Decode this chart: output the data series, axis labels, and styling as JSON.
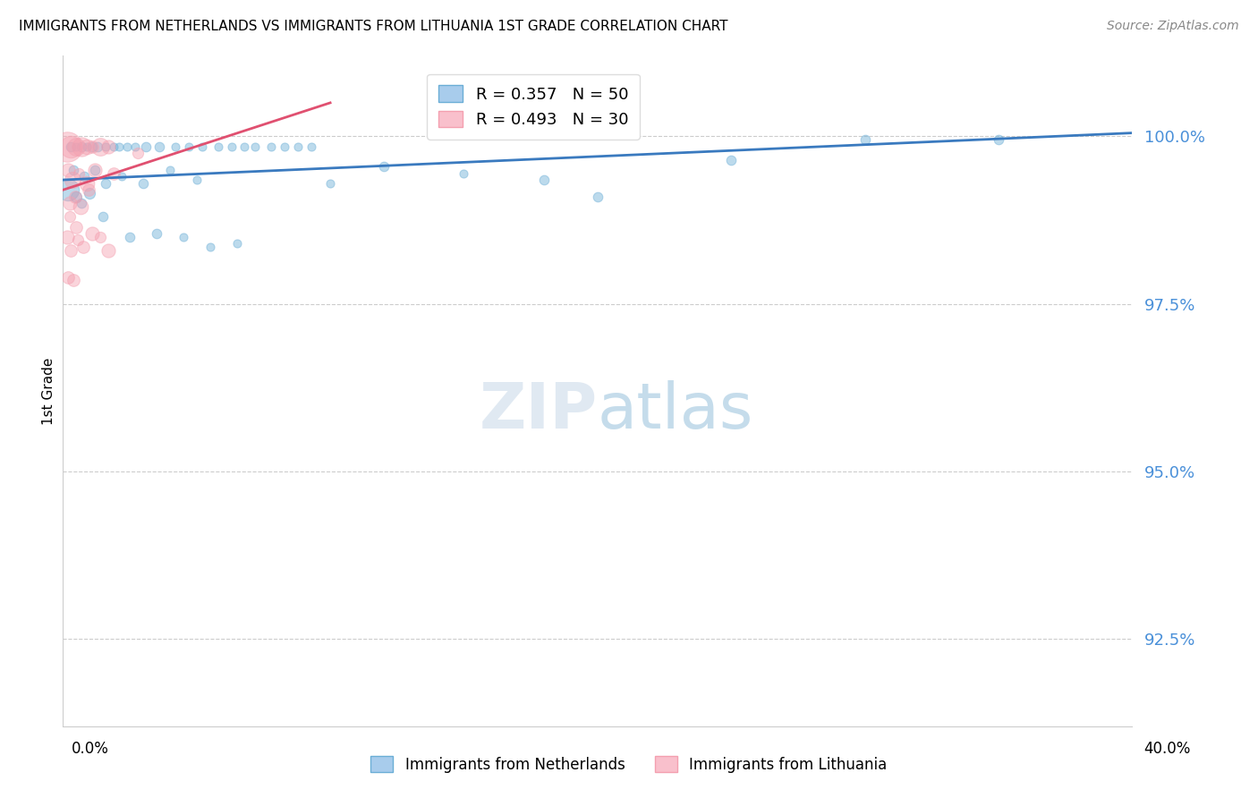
{
  "title": "IMMIGRANTS FROM NETHERLANDS VS IMMIGRANTS FROM LITHUANIA 1ST GRADE CORRELATION CHART",
  "source": "Source: ZipAtlas.com",
  "ylabel": "1st Grade",
  "yticks": [
    92.5,
    95.0,
    97.5,
    100.0
  ],
  "ytick_labels": [
    "92.5%",
    "95.0%",
    "97.5%",
    "100.0%"
  ],
  "xmin": 0.0,
  "xmax": 40.0,
  "ymin": 91.2,
  "ymax": 101.2,
  "netherlands_color": "#6baed6",
  "lithuania_color": "#f4a0b0",
  "netherlands_label": "Immigrants from Netherlands",
  "lithuania_label": "Immigrants from Lithuania",
  "R_netherlands": 0.357,
  "N_netherlands": 50,
  "R_lithuania": 0.493,
  "N_lithuania": 30,
  "nl_trendline_x": [
    0.0,
    40.0
  ],
  "nl_trendline_y": [
    99.35,
    100.05
  ],
  "lt_trendline_x": [
    0.0,
    10.0
  ],
  "lt_trendline_y": [
    99.2,
    100.5
  ],
  "netherlands_points": [
    [
      0.3,
      99.85,
      7
    ],
    [
      0.5,
      99.85,
      6
    ],
    [
      0.7,
      99.85,
      7
    ],
    [
      0.9,
      99.85,
      6
    ],
    [
      1.1,
      99.85,
      7
    ],
    [
      1.3,
      99.85,
      7
    ],
    [
      1.6,
      99.85,
      6
    ],
    [
      1.9,
      99.85,
      6
    ],
    [
      2.1,
      99.85,
      6
    ],
    [
      2.4,
      99.85,
      6
    ],
    [
      2.7,
      99.85,
      6
    ],
    [
      3.1,
      99.85,
      7
    ],
    [
      3.6,
      99.85,
      7
    ],
    [
      4.2,
      99.85,
      6
    ],
    [
      4.7,
      99.85,
      6
    ],
    [
      5.2,
      99.85,
      6
    ],
    [
      5.8,
      99.85,
      6
    ],
    [
      6.3,
      99.85,
      6
    ],
    [
      6.8,
      99.85,
      6
    ],
    [
      7.2,
      99.85,
      6
    ],
    [
      7.8,
      99.85,
      6
    ],
    [
      8.3,
      99.85,
      6
    ],
    [
      8.8,
      99.85,
      6
    ],
    [
      9.3,
      99.85,
      6
    ],
    [
      0.4,
      99.5,
      7
    ],
    [
      0.8,
      99.4,
      7
    ],
    [
      1.2,
      99.5,
      7
    ],
    [
      1.6,
      99.3,
      7
    ],
    [
      2.2,
      99.4,
      6
    ],
    [
      3.0,
      99.3,
      7
    ],
    [
      4.0,
      99.5,
      6
    ],
    [
      5.0,
      99.35,
      6
    ],
    [
      0.2,
      99.2,
      16
    ],
    [
      0.5,
      99.1,
      8
    ],
    [
      0.7,
      99.0,
      7
    ],
    [
      1.0,
      99.15,
      8
    ],
    [
      1.5,
      98.8,
      7
    ],
    [
      2.5,
      98.5,
      7
    ],
    [
      3.5,
      98.55,
      7
    ],
    [
      4.5,
      98.5,
      6
    ],
    [
      5.5,
      98.35,
      6
    ],
    [
      6.5,
      98.4,
      6
    ],
    [
      12.0,
      99.55,
      7
    ],
    [
      15.0,
      99.45,
      6
    ],
    [
      18.0,
      99.35,
      7
    ],
    [
      20.0,
      99.1,
      7
    ],
    [
      25.0,
      99.65,
      7
    ],
    [
      30.0,
      99.95,
      7
    ],
    [
      35.0,
      99.95,
      7
    ],
    [
      10.0,
      99.3,
      6
    ]
  ],
  "lithuania_points": [
    [
      0.15,
      99.85,
      22
    ],
    [
      0.3,
      99.85,
      16
    ],
    [
      0.5,
      99.85,
      13
    ],
    [
      0.7,
      99.85,
      14
    ],
    [
      0.9,
      99.85,
      11
    ],
    [
      1.1,
      99.85,
      9
    ],
    [
      1.4,
      99.85,
      13
    ],
    [
      1.7,
      99.85,
      10
    ],
    [
      0.2,
      99.5,
      10
    ],
    [
      0.35,
      99.35,
      12
    ],
    [
      0.6,
      99.45,
      8
    ],
    [
      0.9,
      99.3,
      11
    ],
    [
      1.2,
      99.5,
      10
    ],
    [
      0.15,
      98.5,
      10
    ],
    [
      0.3,
      98.3,
      9
    ],
    [
      0.55,
      98.45,
      8
    ],
    [
      0.75,
      98.35,
      9
    ],
    [
      1.4,
      98.5,
      8
    ],
    [
      0.25,
      99.0,
      10
    ],
    [
      0.45,
      99.1,
      9
    ],
    [
      0.65,
      98.95,
      11
    ],
    [
      0.95,
      99.2,
      9
    ],
    [
      0.18,
      97.9,
      9
    ],
    [
      0.38,
      97.85,
      9
    ],
    [
      0.25,
      98.8,
      8
    ],
    [
      0.48,
      98.65,
      9
    ],
    [
      1.1,
      98.55,
      10
    ],
    [
      1.9,
      99.45,
      9
    ],
    [
      1.7,
      98.3,
      10
    ],
    [
      2.8,
      99.75,
      8
    ]
  ]
}
